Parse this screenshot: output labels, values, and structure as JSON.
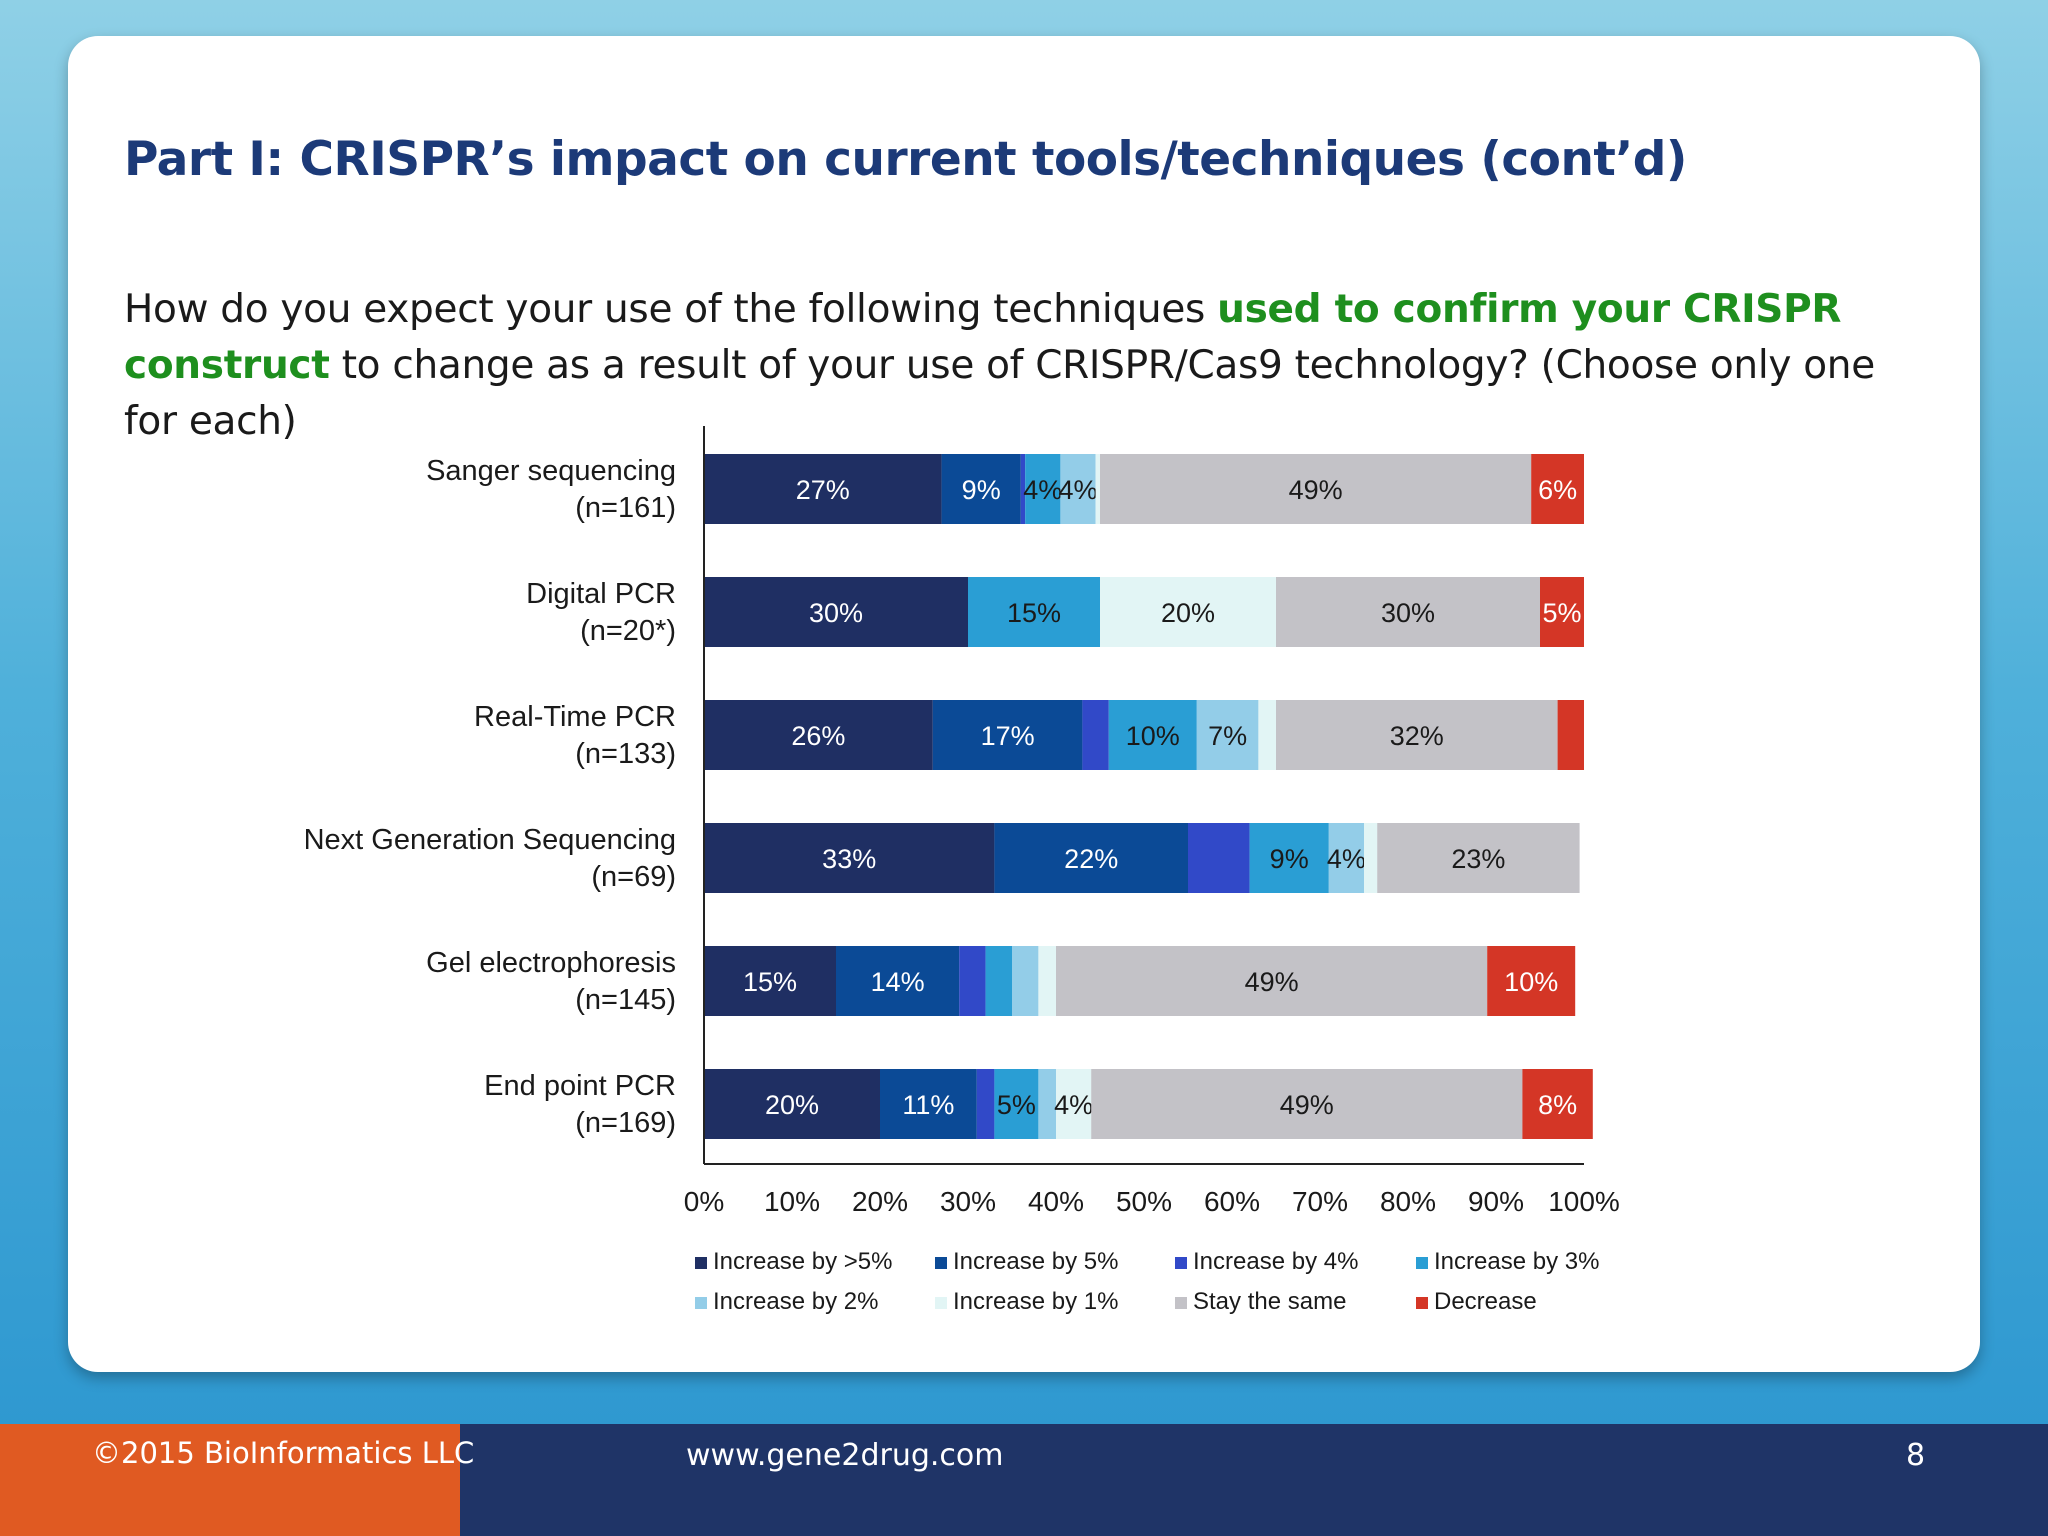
{
  "slide": {
    "title": "Part I: CRISPR’s impact on current tools/techniques (cont’d)",
    "question_before": "How do you expect your use of the following techniques ",
    "question_highlight": "used to confirm your CRISPR construct",
    "question_after": " to change as a result of your use of CRISPR/Cas9 technology? (Choose only one for each)",
    "page_number": "8"
  },
  "footer": {
    "copyright": "©2015 BioInformatics LLC",
    "url": "www.gene2drug.com"
  },
  "colors": {
    "title": "#1c3a78",
    "highlight": "#1e8f1e",
    "footer_left": "#e05a22",
    "footer_right": "#1f3467"
  },
  "chart_data": {
    "type": "bar",
    "orientation": "horizontal",
    "stacked": true,
    "percent_stacked": true,
    "categories": [
      [
        "Sanger sequencing",
        "(n=161)"
      ],
      [
        "Digital PCR",
        "(n=20*)"
      ],
      [
        "Real-Time PCR",
        "(n=133)"
      ],
      [
        "Next Generation Sequencing",
        "(n=69)"
      ],
      [
        "Gel electrophoresis",
        "(n=145)"
      ],
      [
        "End point PCR",
        "(n=169)"
      ]
    ],
    "series": [
      {
        "name": "Increase by >5%",
        "color": "#1f2f63",
        "label_color": "#ffffff",
        "values": [
          27,
          30,
          26,
          33,
          15,
          20
        ],
        "labels": [
          "27%",
          "30%",
          "26%",
          "33%",
          "15%",
          "20%"
        ]
      },
      {
        "name": "Increase by 5%",
        "color": "#0b4a96",
        "label_color": "#ffffff",
        "values": [
          9,
          0,
          17,
          22,
          14,
          11
        ],
        "labels": [
          "9%",
          "",
          "17%",
          "22%",
          "14%",
          "11%"
        ]
      },
      {
        "name": "Increase by 4%",
        "color": "#3149c8",
        "label_color": "#ffffff",
        "values": [
          0.5,
          0,
          3,
          7,
          3,
          2
        ],
        "labels": [
          "",
          "",
          "",
          "",
          "",
          ""
        ]
      },
      {
        "name": "Increase by 3%",
        "color": "#2a9ed4",
        "label_color": "#1a1a1a",
        "values": [
          4,
          15,
          10,
          9,
          3,
          5
        ],
        "labels": [
          "4%",
          "15%",
          "10%",
          "9%",
          "",
          "5%"
        ]
      },
      {
        "name": "Increase by 2%",
        "color": "#93cde8",
        "label_color": "#1a1a1a",
        "values": [
          4,
          0,
          7,
          4,
          3,
          2
        ],
        "labels": [
          "4%",
          "",
          "7%",
          "4%",
          "",
          ""
        ]
      },
      {
        "name": "Increase by 1%",
        "color": "#e2f5f5",
        "label_color": "#1a1a1a",
        "values": [
          0.5,
          20,
          2,
          1.5,
          2,
          4
        ],
        "labels": [
          "",
          "20%",
          "",
          "",
          "",
          "4%"
        ]
      },
      {
        "name": "Stay the same",
        "color": "#c3c2c7",
        "label_color": "#1a1a1a",
        "values": [
          49,
          30,
          32,
          23,
          49,
          49
        ],
        "labels": [
          "49%",
          "30%",
          "32%",
          "23%",
          "49%",
          "49%"
        ]
      },
      {
        "name": "Decrease",
        "color": "#d43626",
        "label_color": "#ffffff",
        "values": [
          6,
          5,
          3,
          0,
          10,
          8
        ],
        "labels": [
          "6%",
          "5%",
          "",
          "",
          "10%",
          "8%"
        ]
      }
    ],
    "xlim": [
      0,
      100
    ],
    "xticks": [
      "0%",
      "10%",
      "20%",
      "30%",
      "40%",
      "50%",
      "60%",
      "70%",
      "80%",
      "90%",
      "100%"
    ],
    "grid": false,
    "legend_position": "bottom"
  }
}
